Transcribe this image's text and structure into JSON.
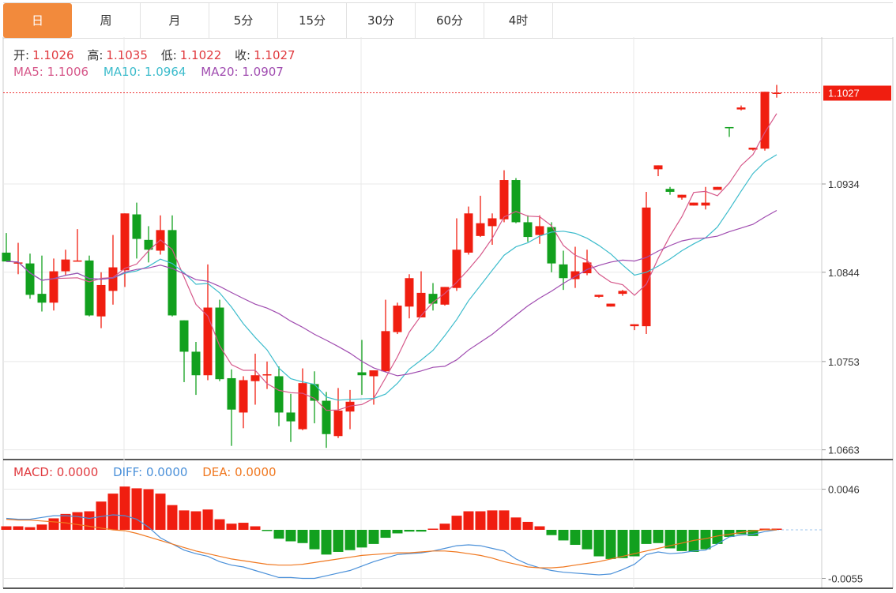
{
  "tabs": [
    {
      "label": "日",
      "active": true
    },
    {
      "label": "周"
    },
    {
      "label": "月"
    },
    {
      "label": "5分"
    },
    {
      "label": "15分"
    },
    {
      "label": "30分"
    },
    {
      "label": "60分"
    },
    {
      "label": "4时"
    }
  ],
  "ohlc_legend": {
    "open_label": "开:",
    "open": "1.1026",
    "high_label": "高:",
    "high": "1.1035",
    "low_label": "低:",
    "low": "1.1022",
    "close_label": "收:",
    "close": "1.1027"
  },
  "ma_legend": {
    "ma5": "MA5: 1.1006",
    "ma10": "MA10: 1.0964",
    "ma20": "MA20: 1.0907"
  },
  "macd_legend": {
    "macd": "MACD: 0.0000",
    "diff": "DIFF: 0.0000",
    "dea": "DEA: 0.0000"
  },
  "current_price": "1.1027",
  "colors": {
    "up": "#f01e10",
    "down": "#12a01e",
    "tab_active": "#f28a3c",
    "ma5": "#d6588a",
    "ma10": "#3dbccc",
    "ma20": "#a04cb0",
    "diff": "#4a90d9",
    "dea": "#f07820",
    "macd_label": "#e0393e"
  },
  "chart_data": {
    "type": "candlestick",
    "price_axis": {
      "ticks": [
        "1.0934",
        "1.0844",
        "1.0753",
        "1.0663"
      ],
      "ylim": [
        1.0651,
        1.1063
      ]
    },
    "macd_axis": {
      "ticks": [
        "0.0046",
        "-0.0055"
      ]
    },
    "grid": true,
    "ma_periods": [
      5,
      10,
      20
    ],
    "ohlc": [
      [
        1.0864,
        1.0884,
        1.0855,
        1.0855
      ],
      [
        1.0854,
        1.0874,
        1.0842,
        1.0854
      ],
      [
        1.0853,
        1.0863,
        1.0817,
        1.0821
      ],
      [
        1.0822,
        1.0861,
        1.0804,
        1.0813
      ],
      [
        1.0813,
        1.0858,
        1.0805,
        1.0845
      ],
      [
        1.0845,
        1.0867,
        1.0841,
        1.0857
      ],
      [
        1.0856,
        1.0888,
        1.0855,
        1.0856
      ],
      [
        1.0856,
        1.0861,
        1.0799,
        1.08
      ],
      [
        1.0799,
        1.0844,
        1.0787,
        1.0831
      ],
      [
        1.0825,
        1.0882,
        1.0811,
        1.0849
      ],
      [
        1.0846,
        1.0904,
        1.0829,
        1.0904
      ],
      [
        1.0903,
        1.0915,
        1.0858,
        1.0878
      ],
      [
        1.0877,
        1.0891,
        1.0854,
        1.0867
      ],
      [
        1.0866,
        1.0902,
        1.0862,
        1.0887
      ],
      [
        1.0887,
        1.0902,
        1.0799,
        1.08
      ],
      [
        1.0795,
        1.0795,
        1.0732,
        1.0763
      ],
      [
        1.0763,
        1.0773,
        1.0719,
        1.0739
      ],
      [
        1.0739,
        1.0852,
        1.0734,
        1.0808
      ],
      [
        1.0808,
        1.0816,
        1.0733,
        1.0735
      ],
      [
        1.0736,
        1.0745,
        1.0667,
        1.0704
      ],
      [
        1.0701,
        1.0738,
        1.0685,
        1.0734
      ],
      [
        1.0733,
        1.0761,
        1.0709,
        1.0739
      ],
      [
        1.0739,
        1.0753,
        1.0725,
        1.074
      ],
      [
        1.0738,
        1.0748,
        1.0687,
        1.0701
      ],
      [
        1.0701,
        1.072,
        1.0671,
        1.0692
      ],
      [
        1.0684,
        1.0746,
        1.0683,
        1.0731
      ],
      [
        1.073,
        1.0743,
        1.069,
        1.0713
      ],
      [
        1.0713,
        1.0722,
        1.0665,
        1.0679
      ],
      [
        1.0677,
        1.0726,
        1.0675,
        1.0703
      ],
      [
        1.0702,
        1.0724,
        1.0684,
        1.0712
      ],
      [
        1.0742,
        1.0775,
        1.0719,
        1.0739
      ],
      [
        1.0738,
        1.0744,
        1.0709,
        1.0744
      ],
      [
        1.0743,
        1.0816,
        1.0742,
        1.0784
      ],
      [
        1.0783,
        1.0813,
        1.0781,
        1.081
      ],
      [
        1.0809,
        1.0842,
        1.0797,
        1.0838
      ],
      [
        1.0798,
        1.0845,
        1.0798,
        1.0823
      ],
      [
        1.0822,
        1.0833,
        1.0805,
        1.0812
      ],
      [
        1.0811,
        1.0829,
        1.081,
        1.0829
      ],
      [
        1.0828,
        1.0899,
        1.0825,
        1.0867
      ],
      [
        1.0864,
        1.0911,
        1.0862,
        1.0904
      ],
      [
        1.0881,
        1.0922,
        1.088,
        1.0894
      ],
      [
        1.0891,
        1.0904,
        1.0872,
        1.0899
      ],
      [
        1.0898,
        1.0948,
        1.0895,
        1.0938
      ],
      [
        1.0938,
        1.094,
        1.0894,
        1.0895
      ],
      [
        1.0895,
        1.0902,
        1.0875,
        1.088
      ],
      [
        1.0882,
        1.0902,
        1.0873,
        1.0891
      ],
      [
        1.089,
        1.0895,
        1.0844,
        1.0853
      ],
      [
        1.0852,
        1.0866,
        1.0826,
        1.0838
      ],
      [
        1.0837,
        1.087,
        1.0828,
        1.0845
      ],
      [
        1.0843,
        1.0867,
        1.0841,
        1.0854
      ],
      [
        1.0819,
        1.0821,
        1.0818,
        1.0821
      ],
      [
        1.0809,
        1.0812,
        1.0809,
        1.0812
      ],
      [
        1.0822,
        1.0826,
        1.082,
        1.0825
      ],
      [
        1.0789,
        1.0791,
        1.0785,
        1.0791
      ],
      [
        1.0789,
        1.0926,
        1.0781,
        1.091
      ],
      [
        1.0949,
        1.0953,
        1.0942,
        1.0953
      ],
      [
        1.0929,
        1.0931,
        1.0923,
        1.0926
      ],
      [
        1.092,
        1.0923,
        1.0918,
        1.0923
      ],
      [
        1.0912,
        1.0915,
        1.0912,
        1.0915
      ],
      [
        1.0912,
        1.0931,
        1.0908,
        1.0915
      ],
      [
        1.0928,
        1.0931,
        1.0928,
        1.0931
      ],
      [
        1.0992,
        1.0992,
        1.0982,
        1.0991
      ],
      [
        1.101,
        1.1014,
        1.1009,
        1.1012
      ],
      [
        1.0969,
        1.0971,
        1.0968,
        1.0971
      ],
      [
        1.097,
        1.1028,
        1.0968,
        1.1028
      ],
      [
        1.1026,
        1.1035,
        1.1022,
        1.1027
      ]
    ],
    "macd_hist": [
      0.0004,
      0.0004,
      0.0003,
      0.0006,
      0.0013,
      0.0018,
      0.002,
      0.0021,
      0.0032,
      0.0041,
      0.0049,
      0.0047,
      0.0046,
      0.0041,
      0.0028,
      0.0022,
      0.0021,
      0.0023,
      0.0012,
      0.0007,
      0.0008,
      0.0004,
      -0.0001,
      -0.001,
      -0.0013,
      -0.0015,
      -0.0022,
      -0.0028,
      -0.0025,
      -0.0023,
      -0.002,
      -0.0016,
      -0.0009,
      -0.0004,
      -0.0002,
      -0.0002,
      0.0,
      0.0007,
      0.0016,
      0.0021,
      0.0021,
      0.0022,
      0.0022,
      0.0014,
      0.0009,
      0.0004,
      -0.0006,
      -0.0012,
      -0.0017,
      -0.0022,
      -0.003,
      -0.0033,
      -0.0032,
      -0.003,
      -0.0016,
      -0.0015,
      -0.0021,
      -0.0024,
      -0.0025,
      -0.0022,
      -0.0016,
      -0.0008,
      -0.0005,
      -0.0007,
      0.0,
      0.0
    ],
    "diff": [
      0.0013,
      0.0012,
      0.0012,
      0.0014,
      0.0016,
      0.0016,
      0.0015,
      0.0013,
      0.0015,
      0.0017,
      0.0016,
      0.0012,
      0.0003,
      -0.0009,
      -0.0016,
      -0.0023,
      -0.0027,
      -0.003,
      -0.0036,
      -0.004,
      -0.0042,
      -0.0046,
      -0.005,
      -0.0054,
      -0.0054,
      -0.0055,
      -0.0055,
      -0.0052,
      -0.0049,
      -0.0046,
      -0.0041,
      -0.0036,
      -0.0032,
      -0.0028,
      -0.0027,
      -0.0026,
      -0.0024,
      -0.0021,
      -0.0018,
      -0.0017,
      -0.0018,
      -0.0021,
      -0.0024,
      -0.0033,
      -0.0039,
      -0.0043,
      -0.0046,
      -0.0048,
      -0.0049,
      -0.005,
      -0.0051,
      -0.005,
      -0.0045,
      -0.0039,
      -0.0028,
      -0.0025,
      -0.0027,
      -0.0026,
      -0.0024,
      -0.0023,
      -0.0016,
      -0.0008,
      -0.0006,
      -0.0005,
      -0.0002,
      0.0
    ],
    "dea": [
      0.0012,
      0.0011,
      0.0011,
      0.001,
      0.0009,
      0.0008,
      0.0006,
      0.0004,
      0.0002,
      0.0,
      -0.0001,
      -0.0004,
      -0.0008,
      -0.0012,
      -0.0016,
      -0.002,
      -0.0024,
      -0.0027,
      -0.003,
      -0.0033,
      -0.0035,
      -0.0037,
      -0.0039,
      -0.004,
      -0.004,
      -0.0039,
      -0.0037,
      -0.0035,
      -0.0033,
      -0.0031,
      -0.0029,
      -0.0028,
      -0.0027,
      -0.0026,
      -0.0026,
      -0.0025,
      -0.0024,
      -0.0024,
      -0.0025,
      -0.0027,
      -0.0029,
      -0.0032,
      -0.0036,
      -0.0039,
      -0.0042,
      -0.0043,
      -0.0043,
      -0.0042,
      -0.004,
      -0.0038,
      -0.0036,
      -0.0033,
      -0.003,
      -0.0027,
      -0.0024,
      -0.0021,
      -0.0018,
      -0.0015,
      -0.0012,
      -0.001,
      -0.0007,
      -0.0005,
      -0.0003,
      -0.0001,
      0.0,
      0.0
    ]
  }
}
